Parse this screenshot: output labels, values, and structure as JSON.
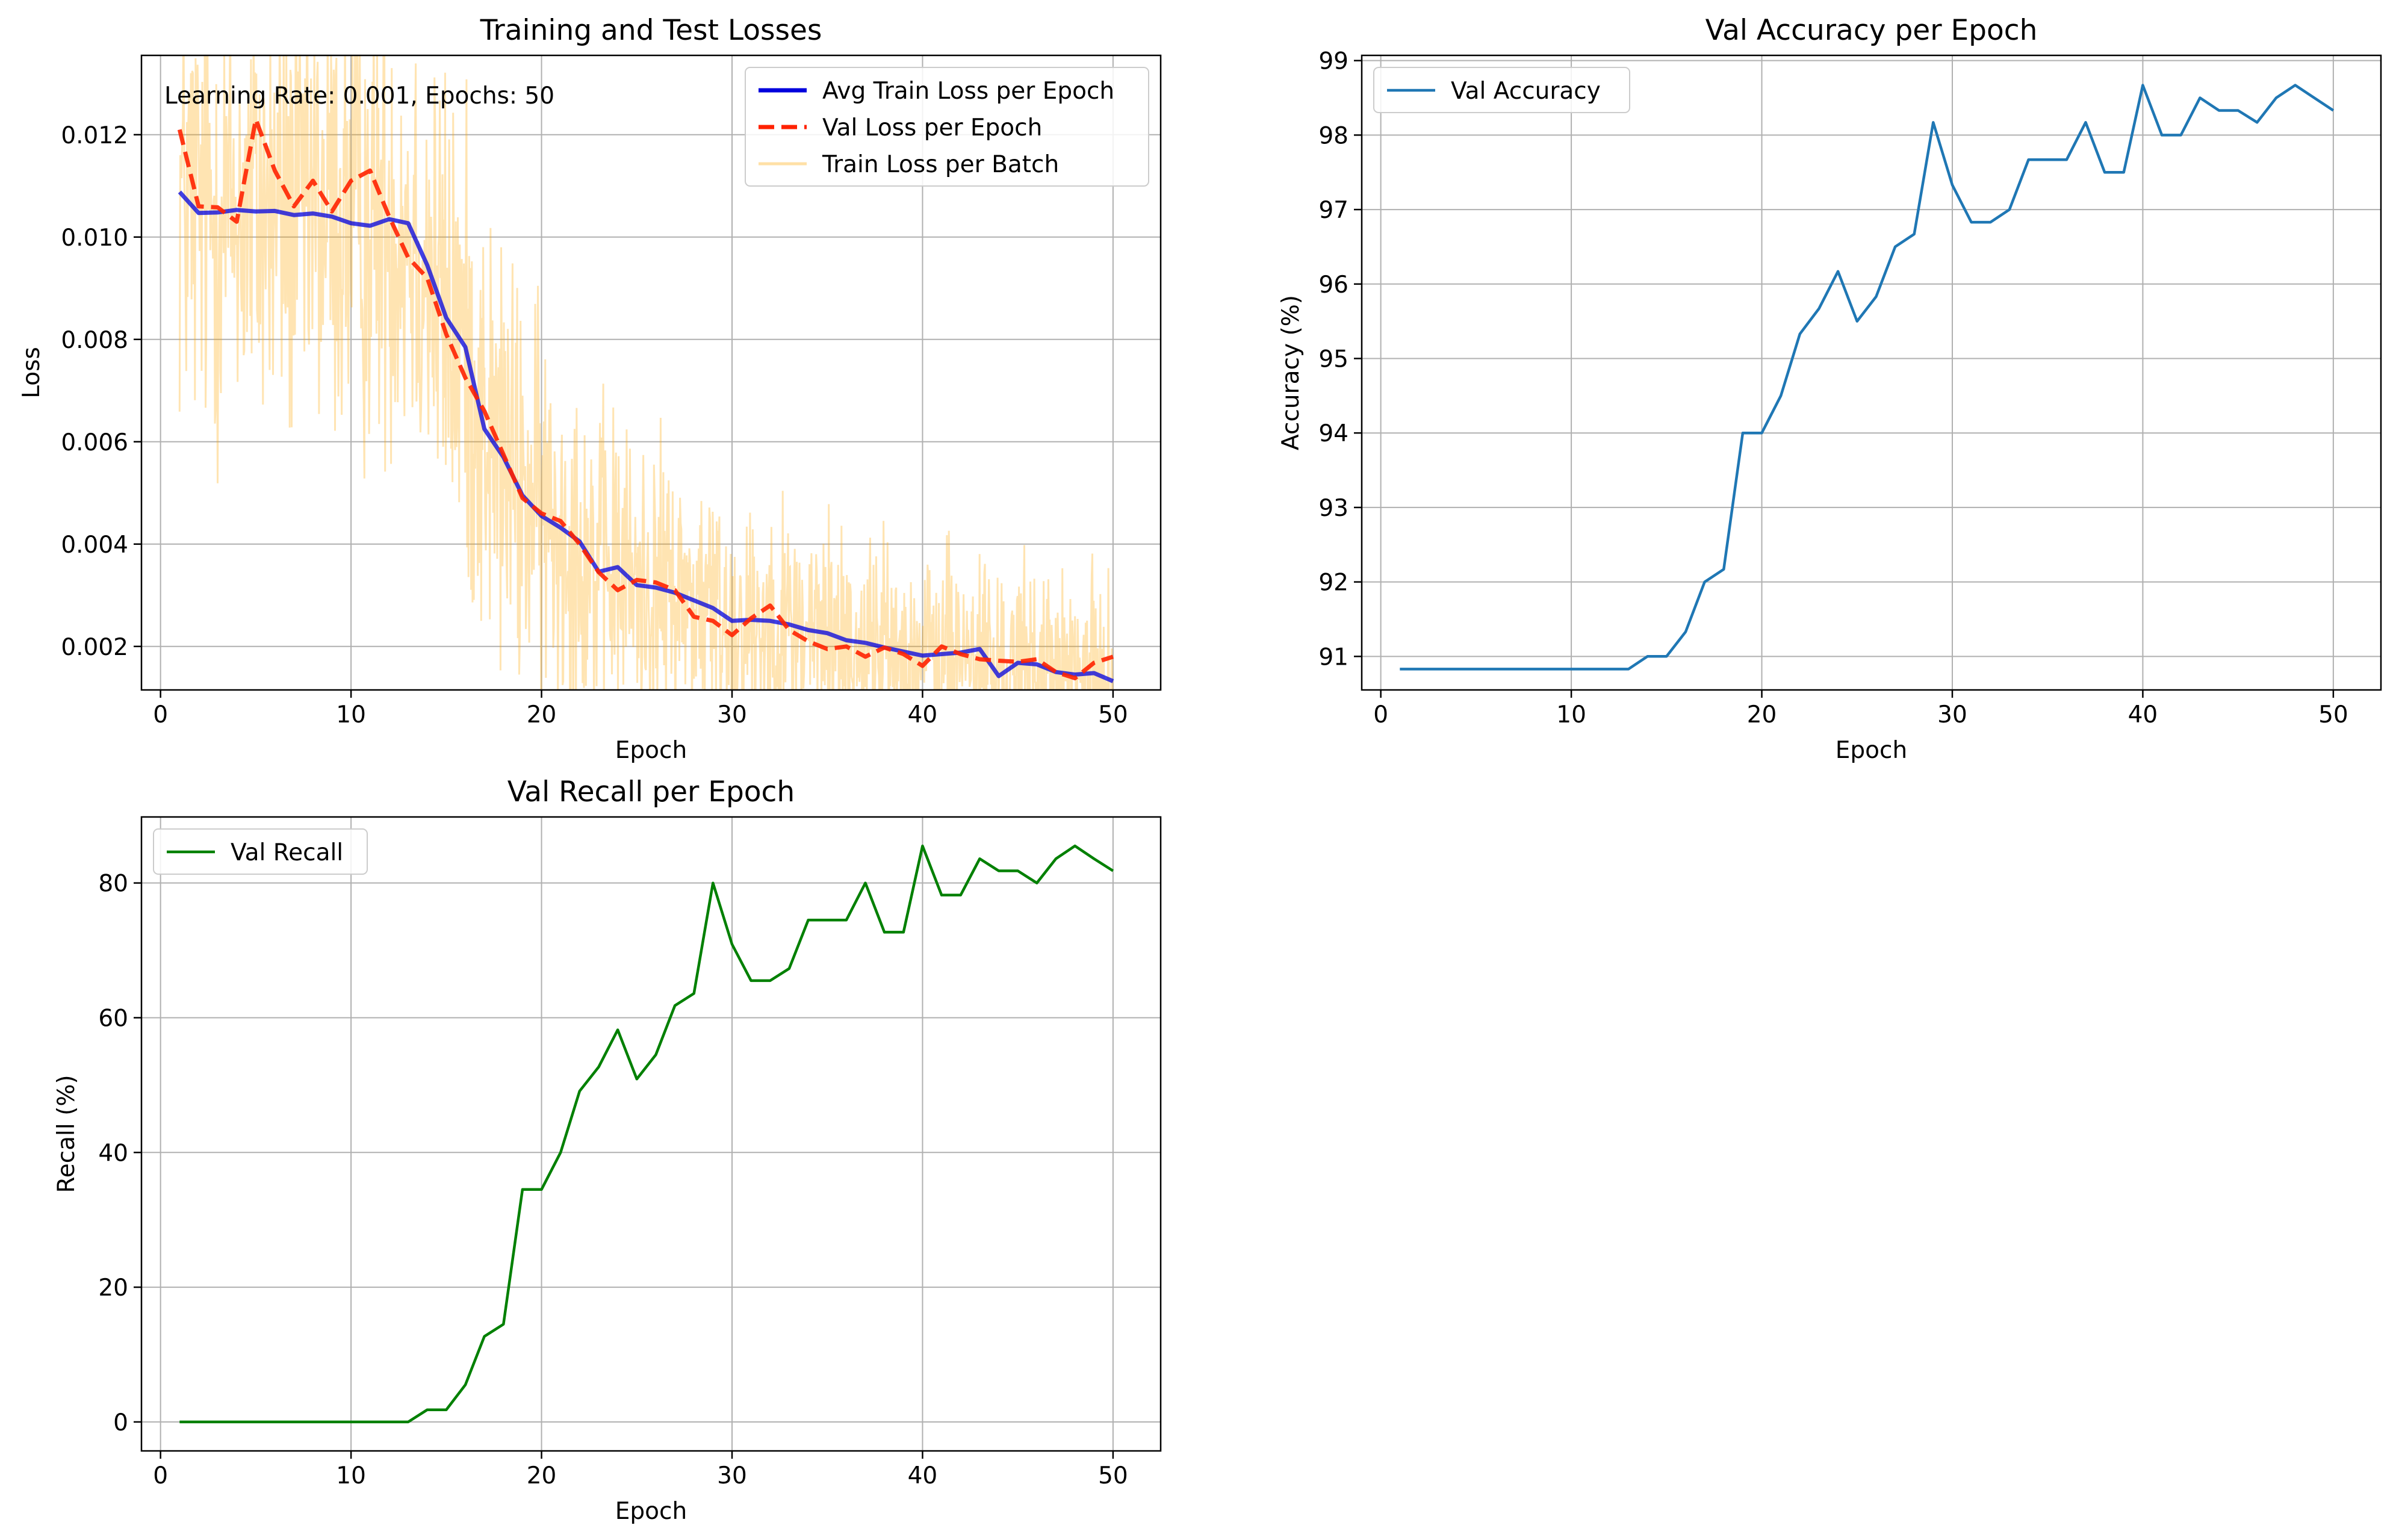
{
  "colors": {
    "avg_train": "#0000dd",
    "val_loss": "#ff2200",
    "train_batch": "#ffa500",
    "val_accuracy": "#1f77b4",
    "val_recall": "#008000",
    "grid": "#b0b0b0",
    "axes": "#000000"
  },
  "chart_data": [
    {
      "type": "line",
      "title": "Training and Test Losses",
      "xlabel": "Epoch",
      "ylabel": "Loss",
      "xlim": [
        -1.0,
        52.5
      ],
      "ylim": [
        0.00115,
        0.01355
      ],
      "xticks": [
        0,
        10,
        20,
        30,
        40,
        50
      ],
      "yticks": [
        0.002,
        0.004,
        0.006,
        0.008,
        0.01,
        0.012
      ],
      "ytick_labels": [
        "0.002",
        "0.004",
        "0.006",
        "0.008",
        "0.010",
        "0.012"
      ],
      "grid": true,
      "legend_position": "top-right",
      "annotation": "Learning Rate: 0.001, Epochs: 50",
      "x": [
        1,
        2,
        3,
        4,
        5,
        6,
        7,
        8,
        9,
        10,
        11,
        12,
        13,
        14,
        15,
        16,
        17,
        18,
        19,
        20,
        21,
        22,
        23,
        24,
        25,
        26,
        27,
        28,
        29,
        30,
        31,
        32,
        33,
        34,
        35,
        36,
        37,
        38,
        39,
        40,
        41,
        42,
        43,
        44,
        45,
        46,
        47,
        48,
        49,
        50
      ],
      "series": [
        {
          "name": "Avg Train Loss per Epoch",
          "style": "solid",
          "values": [
            0.01088,
            0.01047,
            0.01048,
            0.01053,
            0.0105,
            0.01051,
            0.01043,
            0.01046,
            0.0104,
            0.01027,
            0.01022,
            0.01035,
            0.01027,
            0.00945,
            0.00842,
            0.00785,
            0.00625,
            0.0057,
            0.00495,
            0.00455,
            0.00432,
            0.00405,
            0.00346,
            0.00355,
            0.0032,
            0.00315,
            0.00305,
            0.0029,
            0.00275,
            0.0025,
            0.00252,
            0.0025,
            0.00243,
            0.00232,
            0.00226,
            0.00212,
            0.00207,
            0.00198,
            0.0019,
            0.00182,
            0.00185,
            0.00188,
            0.00195,
            0.00142,
            0.00168,
            0.00165,
            0.0015,
            0.00145,
            0.00148,
            0.00132
          ]
        },
        {
          "name": "Val Loss per Epoch",
          "style": "dashed",
          "values": [
            0.0121,
            0.0106,
            0.01058,
            0.0103,
            0.0123,
            0.0113,
            0.0106,
            0.0111,
            0.0105,
            0.0111,
            0.0113,
            0.0104,
            0.0096,
            0.0092,
            0.0081,
            0.00725,
            0.0066,
            0.00575,
            0.0049,
            0.0046,
            0.00445,
            0.004,
            0.00345,
            0.0031,
            0.0033,
            0.00325,
            0.0031,
            0.00258,
            0.0025,
            0.00222,
            0.00255,
            0.0028,
            0.00232,
            0.0021,
            0.00195,
            0.002,
            0.0018,
            0.00198,
            0.00185,
            0.00162,
            0.002,
            0.00185,
            0.00175,
            0.00172,
            0.0017,
            0.00175,
            0.0015,
            0.00138,
            0.00168,
            0.0018
          ]
        }
      ],
      "batch_series": {
        "name": "Train Loss per Batch",
        "style": "noisy band",
        "x_range": [
          1,
          50
        ],
        "center": [
          0.01088,
          0.01047,
          0.01048,
          0.01053,
          0.0105,
          0.01051,
          0.01043,
          0.01046,
          0.0104,
          0.01027,
          0.01022,
          0.01035,
          0.01027,
          0.00945,
          0.00842,
          0.00785,
          0.00625,
          0.0057,
          0.00495,
          0.00455,
          0.00432,
          0.00405,
          0.00346,
          0.00355,
          0.0032,
          0.00315,
          0.00305,
          0.0029,
          0.00275,
          0.0025,
          0.00252,
          0.0025,
          0.00243,
          0.00232,
          0.00226,
          0.00212,
          0.00207,
          0.00198,
          0.0019,
          0.00182,
          0.00185,
          0.00188,
          0.00195,
          0.00142,
          0.00168,
          0.00165,
          0.0015,
          0.00145,
          0.00148,
          0.00132
        ],
        "spread": [
          0.0056,
          0.0056,
          0.0056,
          0.0055,
          0.0055,
          0.0055,
          0.0055,
          0.0055,
          0.0055,
          0.0055,
          0.0055,
          0.0055,
          0.0055,
          0.0055,
          0.0055,
          0.0055,
          0.0052,
          0.005,
          0.0047,
          0.0045,
          0.0042,
          0.004,
          0.0038,
          0.0036,
          0.0034,
          0.0033,
          0.0032,
          0.0031,
          0.003,
          0.003,
          0.0029,
          0.0029,
          0.0028,
          0.0028,
          0.0027,
          0.0027,
          0.0026,
          0.0026,
          0.0025,
          0.0025,
          0.0025,
          0.0024,
          0.0024,
          0.0024,
          0.0023,
          0.0023,
          0.0023,
          0.0022,
          0.0022,
          0.0022
        ]
      }
    },
    {
      "type": "line",
      "title": "Val Accuracy per Epoch",
      "xlabel": "Epoch",
      "ylabel": "Accuracy (%)",
      "xlim": [
        -1.0,
        52.5
      ],
      "ylim": [
        90.55,
        99.07
      ],
      "xticks": [
        0,
        10,
        20,
        30,
        40,
        50
      ],
      "yticks": [
        91,
        92,
        93,
        94,
        95,
        96,
        97,
        98,
        99
      ],
      "ytick_labels": [
        "91",
        "92",
        "93",
        "94",
        "95",
        "96",
        "97",
        "98",
        "99"
      ],
      "grid": true,
      "legend_position": "top-left",
      "x": [
        1,
        2,
        3,
        4,
        5,
        6,
        7,
        8,
        9,
        10,
        11,
        12,
        13,
        14,
        15,
        16,
        17,
        18,
        19,
        20,
        21,
        22,
        23,
        24,
        25,
        26,
        27,
        28,
        29,
        30,
        31,
        32,
        33,
        34,
        35,
        36,
        37,
        38,
        39,
        40,
        41,
        42,
        43,
        44,
        45,
        46,
        47,
        48,
        49,
        50
      ],
      "series": [
        {
          "name": "Val Accuracy",
          "values": [
            90.83,
            90.83,
            90.83,
            90.83,
            90.83,
            90.83,
            90.83,
            90.83,
            90.83,
            90.83,
            90.83,
            90.83,
            90.83,
            91.0,
            91.0,
            91.33,
            92.0,
            92.17,
            94.0,
            94.0,
            94.5,
            95.33,
            95.67,
            96.17,
            95.5,
            95.83,
            96.5,
            96.67,
            98.17,
            97.33,
            96.83,
            96.83,
            97.0,
            97.67,
            97.67,
            97.67,
            98.17,
            97.5,
            97.5,
            98.67,
            98.0,
            98.0,
            98.5,
            98.33,
            98.33,
            98.17,
            98.5,
            98.67,
            98.5,
            98.33
          ]
        }
      ]
    },
    {
      "type": "line",
      "title": "Val Recall per Epoch",
      "xlabel": "Epoch",
      "ylabel": "Recall (%)",
      "xlim": [
        -1.0,
        52.5
      ],
      "ylim": [
        -4.3,
        89.8
      ],
      "xticks": [
        0,
        10,
        20,
        30,
        40,
        50
      ],
      "yticks": [
        0,
        20,
        40,
        60,
        80
      ],
      "ytick_labels": [
        "0",
        "20",
        "40",
        "60",
        "80"
      ],
      "grid": true,
      "legend_position": "top-left",
      "x": [
        1,
        2,
        3,
        4,
        5,
        6,
        7,
        8,
        9,
        10,
        11,
        12,
        13,
        14,
        15,
        16,
        17,
        18,
        19,
        20,
        21,
        22,
        23,
        24,
        25,
        26,
        27,
        28,
        29,
        30,
        31,
        32,
        33,
        34,
        35,
        36,
        37,
        38,
        39,
        40,
        41,
        42,
        43,
        44,
        45,
        46,
        47,
        48,
        49,
        50
      ],
      "series": [
        {
          "name": "Val Recall",
          "values": [
            0,
            0,
            0,
            0,
            0,
            0,
            0,
            0,
            0,
            0,
            0,
            0,
            0,
            1.8,
            1.8,
            5.5,
            12.7,
            14.5,
            34.5,
            34.5,
            40.0,
            49.1,
            52.7,
            58.2,
            50.9,
            54.5,
            61.8,
            63.6,
            80.0,
            70.9,
            65.5,
            65.5,
            67.3,
            74.5,
            74.5,
            74.5,
            80.0,
            72.7,
            72.7,
            85.5,
            78.2,
            78.2,
            83.6,
            81.8,
            81.8,
            80.0,
            83.6,
            85.5,
            83.6,
            81.8
          ]
        }
      ]
    }
  ]
}
